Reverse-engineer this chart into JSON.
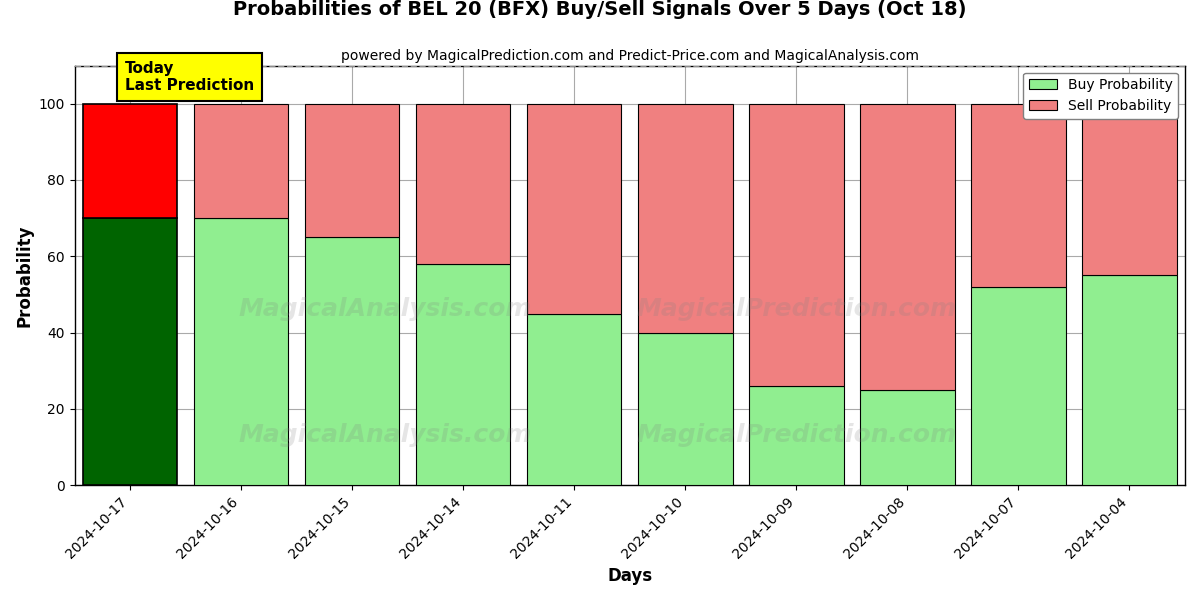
{
  "title": "Probabilities of BEL 20 (BFX) Buy/Sell Signals Over 5 Days (Oct 18)",
  "subtitle": "powered by MagicalPrediction.com and Predict-Price.com and MagicalAnalysis.com",
  "xlabel": "Days",
  "ylabel": "Probability",
  "categories": [
    "2024-10-17",
    "2024-10-16",
    "2024-10-15",
    "2024-10-14",
    "2024-10-11",
    "2024-10-10",
    "2024-10-09",
    "2024-10-08",
    "2024-10-07",
    "2024-10-04"
  ],
  "buy_values": [
    70,
    70,
    65,
    58,
    45,
    40,
    26,
    25,
    52,
    55
  ],
  "sell_values": [
    30,
    30,
    35,
    42,
    55,
    60,
    74,
    75,
    48,
    45
  ],
  "today_buy_color": "#006400",
  "today_sell_color": "#FF0000",
  "buy_color": "#90EE90",
  "sell_color": "#F08080",
  "today_annotation": "Today\nLast Prediction",
  "annotation_bg_color": "#FFFF00",
  "ylim": [
    0,
    110
  ],
  "yticks": [
    0,
    20,
    40,
    60,
    80,
    100
  ],
  "dashed_line_y": 110,
  "legend_buy_label": "Buy Probability",
  "legend_sell_label": "Sell Probability",
  "title_fontsize": 14,
  "subtitle_fontsize": 10,
  "axis_label_fontsize": 12,
  "tick_label_fontsize": 10,
  "background_color": "#FFFFFF",
  "grid_color": "#AAAAAA",
  "bar_width": 0.85
}
